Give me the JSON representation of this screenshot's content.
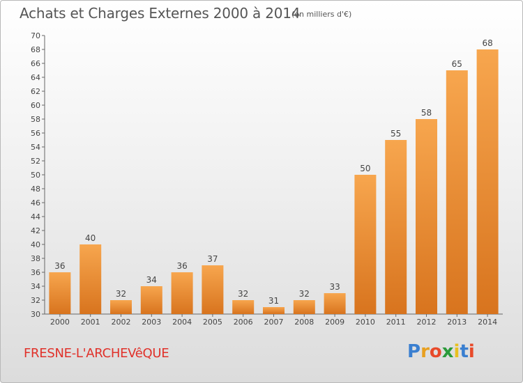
{
  "header": {
    "title": "Achats et Charges Externes 2000 à 2014",
    "subtitle": "(en milliers d'€)"
  },
  "footer": {
    "city": "FRESNE-L'ARCHEVêQUE",
    "logo_letters": [
      "P",
      "r",
      "o",
      "x",
      "i",
      "t",
      "i"
    ],
    "logo_colors": [
      "#3a7fd0",
      "#e8a020",
      "#e84a2a",
      "#2a9a3a",
      "#e8c020",
      "#3a7fd0",
      "#e84a2a"
    ]
  },
  "chart_data": {
    "type": "bar",
    "title": "Achats et Charges Externes 2000 à 2014",
    "subtitle": "(en milliers d'€)",
    "categories": [
      "2000",
      "2001",
      "2002",
      "2003",
      "2004",
      "2005",
      "2006",
      "2007",
      "2008",
      "2009",
      "2010",
      "2011",
      "2012",
      "2013",
      "2014"
    ],
    "values": [
      36,
      40,
      32,
      34,
      36,
      37,
      32,
      31,
      32,
      33,
      50,
      55,
      58,
      65,
      68
    ],
    "ylim": [
      30,
      70
    ],
    "ytick_step": 2,
    "grid": false,
    "bar_color_light": "#f7a64e",
    "bar_color_dark": "#d8741e"
  }
}
